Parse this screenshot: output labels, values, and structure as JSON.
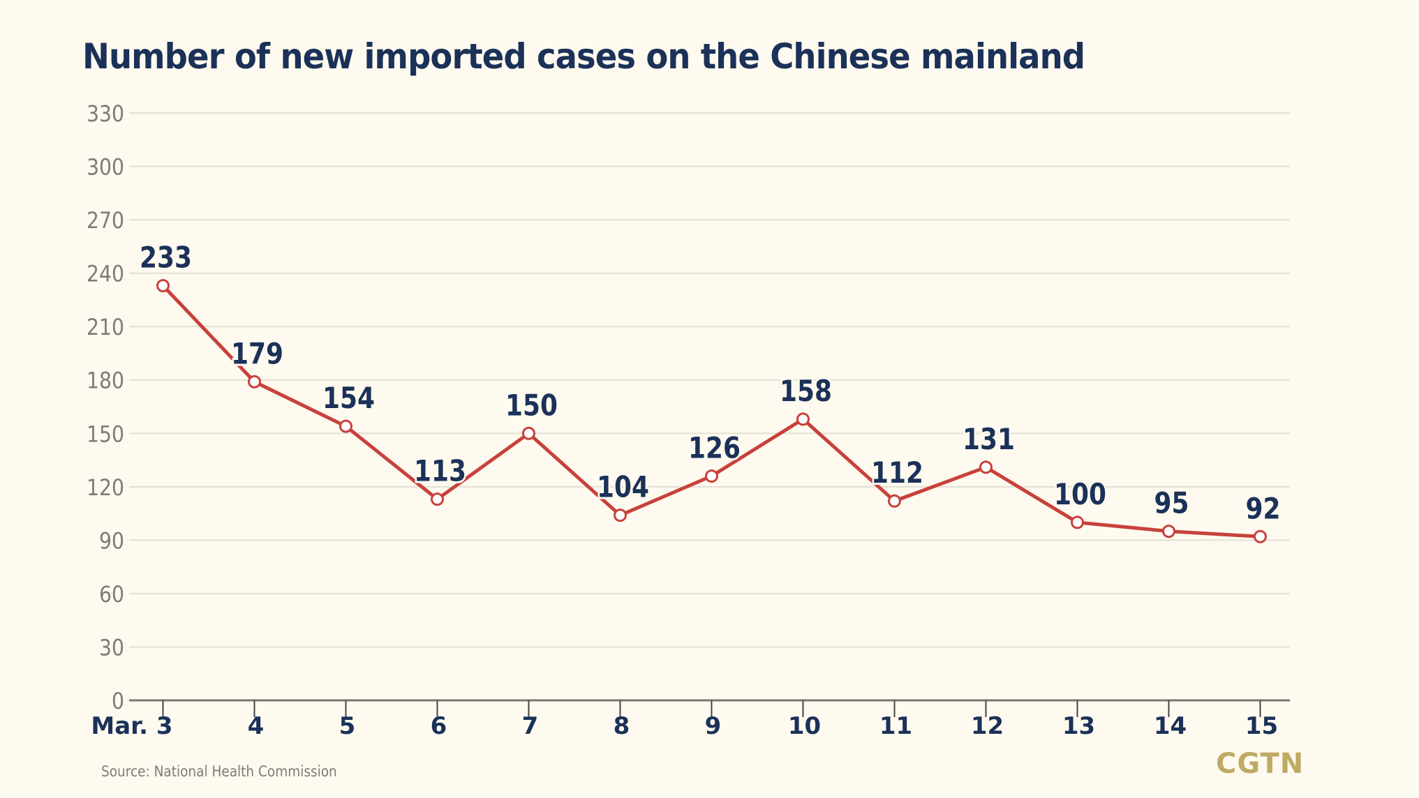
{
  "chart_data": {
    "type": "line",
    "title": "Number of new imported cases on the Chinese mainland",
    "xlabel": "",
    "ylabel": "",
    "categories": [
      "Mar. 3",
      "4",
      "5",
      "6",
      "7",
      "8",
      "9",
      "10",
      "11",
      "12",
      "13",
      "14",
      "15"
    ],
    "series": [
      {
        "name": "New imported cases",
        "values": [
          233,
          179,
          154,
          113,
          150,
          104,
          126,
          158,
          112,
          131,
          100,
          95,
          92
        ],
        "color": "#c8413b"
      }
    ],
    "yticks": [
      0,
      30,
      60,
      90,
      120,
      150,
      180,
      210,
      240,
      270,
      300,
      330
    ],
    "ylim": [
      0,
      330
    ],
    "grid": true,
    "legend": "none"
  },
  "source": "Source: National Health Commission",
  "logo": "CGTN",
  "colors": {
    "title": "#1b3158",
    "line": "#c8413b",
    "grid": "#e2dfd3",
    "axis": "#7a776e",
    "tick_label": "#7c7c7c",
    "logo": "#bfaa64",
    "background": "#fefaef"
  }
}
